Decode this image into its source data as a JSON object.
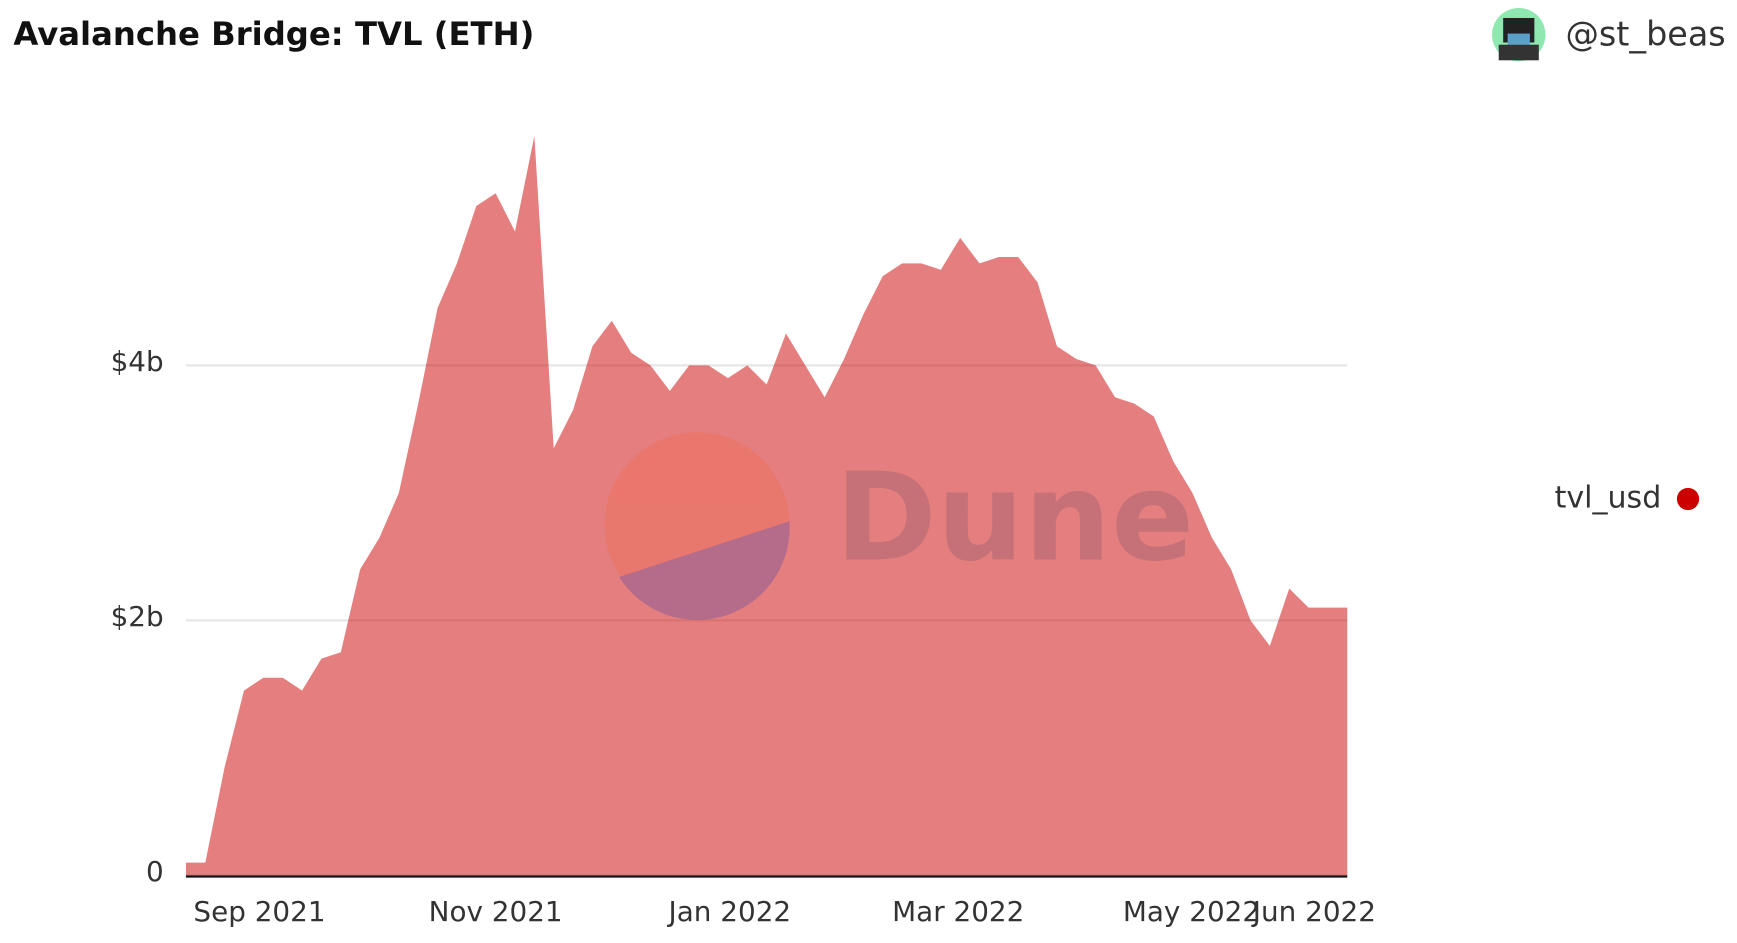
{
  "chart_data": {
    "type": "area",
    "title": "Avalanche Bridge: TVL (ETH)",
    "author": "@st_beas",
    "series": [
      {
        "name": "tvl_usd",
        "color": "#cc0000",
        "values": [
          100000000,
          100000000,
          850000000,
          1450000000,
          1550000000,
          1550000000,
          1450000000,
          1700000000,
          1750000000,
          2400000000,
          2650000000,
          3000000000,
          3700000000,
          4450000000,
          4800000000,
          5250000000,
          5350000000,
          5050000000,
          5800000000,
          3350000000,
          3650000000,
          4150000000,
          4350000000,
          4100000000,
          4000000000,
          3800000000,
          4000000000,
          4000000000,
          3900000000,
          4000000000,
          3850000000,
          4250000000,
          4000000000,
          3750000000,
          4050000000,
          4400000000,
          4700000000,
          4800000000,
          4800000000,
          4750000000,
          5000000000,
          4800000000,
          4850000000,
          4850000000,
          4650000000,
          4150000000,
          4050000000,
          4000000000,
          3750000000,
          3700000000,
          3600000000,
          3250000000,
          3000000000,
          2650000000,
          2400000000,
          2000000000,
          1800000000,
          2250000000,
          2100000000,
          2100000000,
          2100000000
        ]
      }
    ],
    "xlim": [
      0,
      60
    ],
    "xticks": [
      {
        "value": 3.8,
        "label": "Sep 2021"
      },
      {
        "value": 16,
        "label": "Nov 2021"
      },
      {
        "value": 28.1,
        "label": "Jan 2022"
      },
      {
        "value": 39.9,
        "label": "Mar 2022"
      },
      {
        "value": 51.95,
        "label": "May 2022"
      },
      {
        "value": 58.3,
        "label": "Jun 2022"
      }
    ],
    "ylim": [
      0,
      6000000000
    ],
    "yticks": [
      0,
      {
        "value": 2000000000,
        "label": "$2b"
      },
      {
        "value": 4000000000,
        "label": "$4b"
      }
    ],
    "grid": true,
    "legend": "right"
  }
}
